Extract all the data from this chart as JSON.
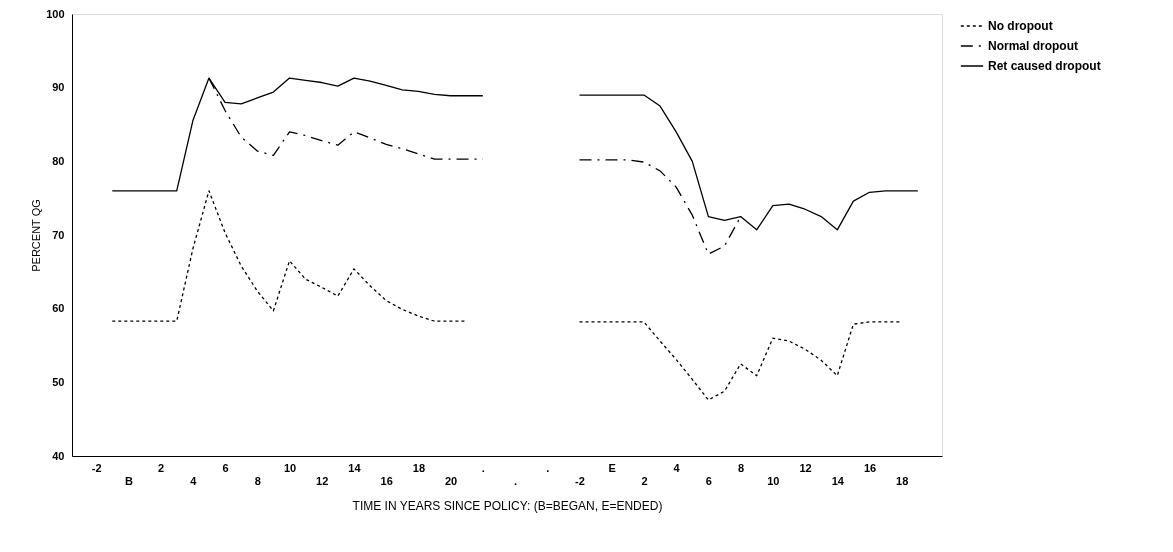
{
  "chart_data": {
    "type": "line",
    "xlabel": "TIME IN YEARS SINCE POLICY: (B=BEGAN, E=ENDED)",
    "ylabel": "PERCENT QG",
    "categories": [
      null,
      "-2",
      null,
      "B",
      null,
      "2",
      null,
      "4",
      null,
      "6",
      null,
      "8",
      null,
      "10",
      null,
      "12",
      null,
      "14",
      null,
      "16",
      null,
      "18",
      null,
      "20",
      null,
      ".",
      null,
      ".",
      null,
      ".",
      null,
      "-2",
      null,
      "E",
      null,
      "2",
      null,
      "4",
      null,
      "6",
      null,
      "8",
      null,
      "10",
      null,
      "12",
      null,
      "14",
      null,
      "16",
      null,
      "18",
      null,
      null
    ],
    "series": [
      {
        "name": "No dropout",
        "color": "#000000",
        "line_style": "dotted",
        "values": [
          null,
          null,
          58.3,
          58.3,
          58.3,
          58.3,
          58.3,
          68.1,
          76.0,
          70.3,
          65.8,
          62.4,
          59.7,
          66.5,
          64.0,
          62.9,
          61.7,
          65.4,
          63.1,
          61.1,
          59.9,
          59.0,
          58.3,
          58.3,
          58.3,
          null,
          null,
          null,
          null,
          null,
          null,
          58.2,
          58.2,
          58.2,
          58.2,
          58.2,
          55.6,
          53.1,
          50.4,
          47.6,
          48.8,
          52.5,
          50.9,
          56.0,
          55.6,
          54.5,
          53.0,
          50.9,
          57.9,
          58.2,
          58.2,
          58.2,
          null,
          null
        ]
      },
      {
        "name": "Normal dropout",
        "color": "#000000",
        "line_style": "dashed",
        "values": [
          null,
          null,
          null,
          null,
          null,
          null,
          null,
          null,
          91.3,
          86.9,
          83.3,
          81.4,
          80.8,
          84.0,
          83.5,
          82.8,
          82.2,
          84.0,
          83.2,
          82.3,
          81.7,
          81.0,
          80.3,
          80.3,
          80.3,
          80.3,
          null,
          null,
          null,
          null,
          null,
          80.2,
          80.2,
          80.2,
          80.2,
          79.9,
          78.7,
          76.5,
          72.7,
          67.4,
          68.5,
          72.5,
          null,
          null,
          null,
          null,
          null,
          null,
          null,
          null,
          null,
          null,
          null,
          null
        ]
      },
      {
        "name": "Ret caused dropout",
        "color": "#000000",
        "line_style": "solid",
        "values": [
          null,
          null,
          76.0,
          76.0,
          76.0,
          76.0,
          76.0,
          85.5,
          91.3,
          88.0,
          87.8,
          88.6,
          89.4,
          91.3,
          91.0,
          90.7,
          90.2,
          91.3,
          90.9,
          90.3,
          89.7,
          89.5,
          89.1,
          88.9,
          88.9,
          88.9,
          null,
          null,
          null,
          null,
          null,
          89.0,
          89.0,
          89.0,
          89.0,
          89.0,
          87.5,
          84.0,
          80.0,
          72.5,
          72.0,
          72.5,
          70.7,
          74.0,
          74.2,
          73.5,
          72.5,
          70.7,
          74.6,
          75.8,
          76.0,
          76.0,
          76.0,
          null
        ]
      }
    ],
    "ylim": [
      40,
      100
    ],
    "yticks": [
      40,
      50,
      60,
      70,
      80,
      90,
      100
    ],
    "grid": false,
    "legend": "right",
    "marker": "none"
  }
}
